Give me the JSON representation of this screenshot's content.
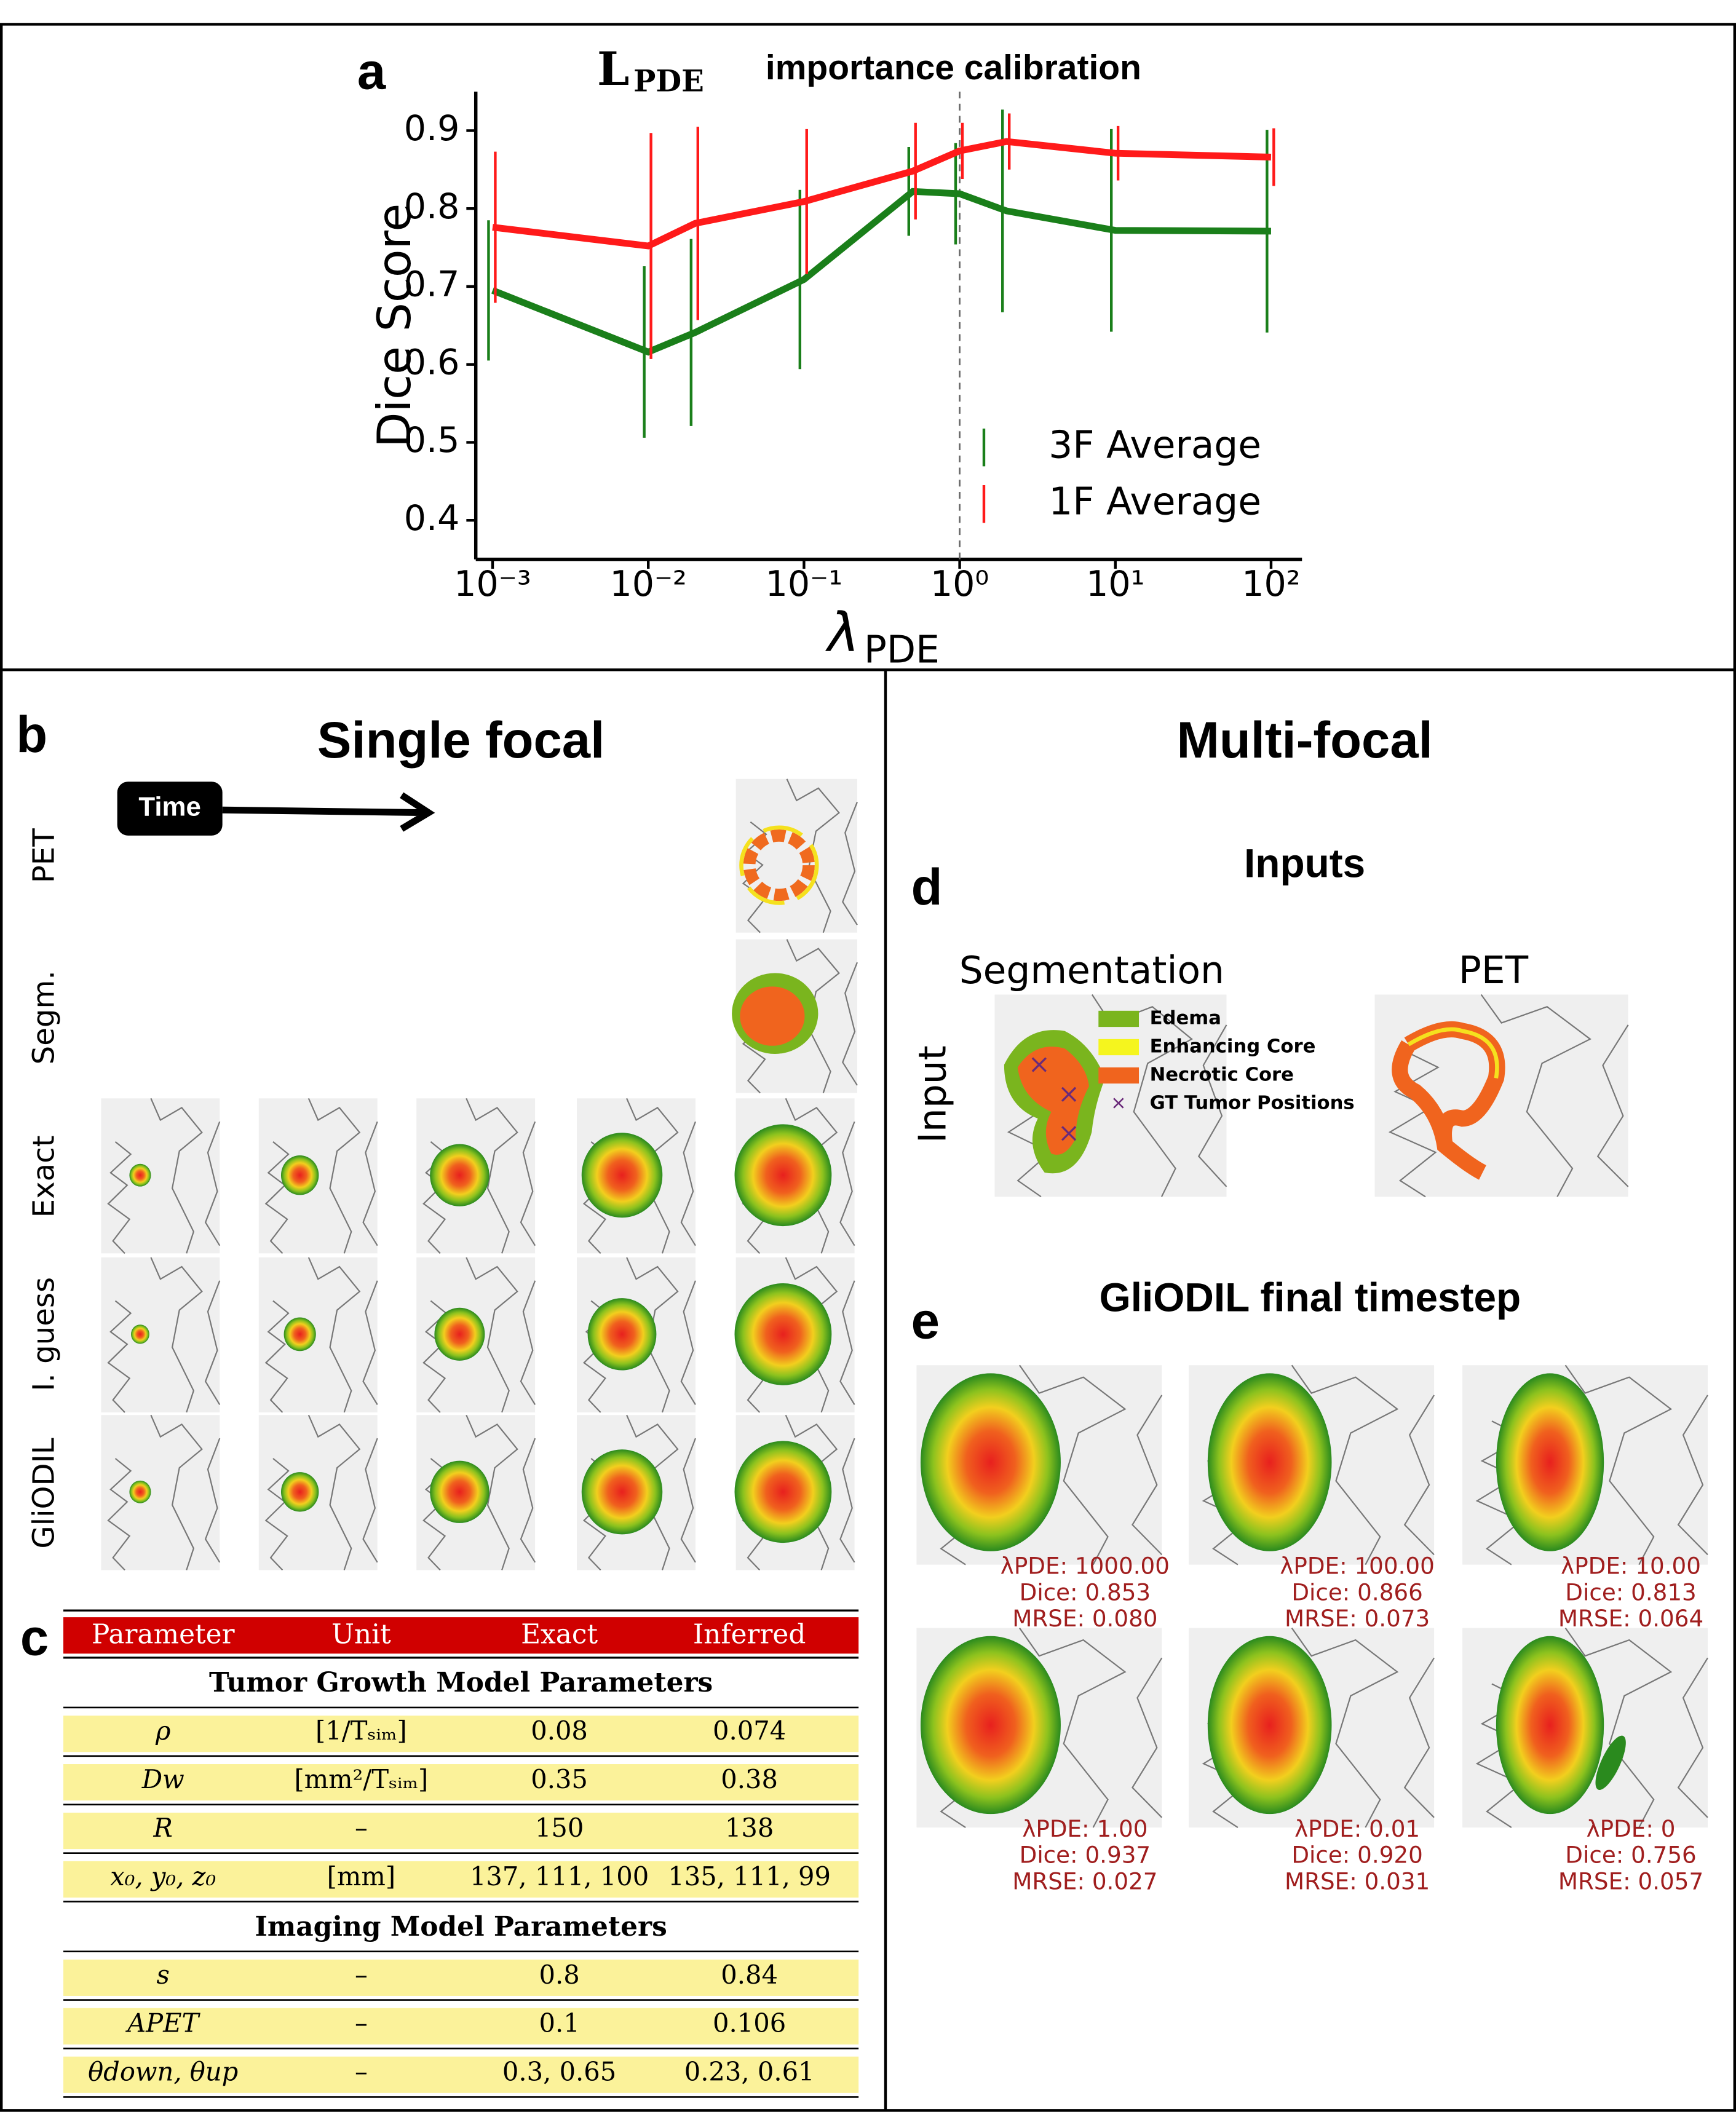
{
  "chart_data": {
    "type": "line",
    "title_symbol": "L",
    "title_subscript": "PDE",
    "title": "importance calibration",
    "x": [
      0.001,
      0.01,
      0.02,
      0.1,
      0.5,
      1,
      2,
      10,
      100
    ],
    "series": [
      {
        "name": "3F Average",
        "color": "#1a7f1a",
        "values": [
          0.695,
          0.616,
          0.641,
          0.709,
          0.822,
          0.819,
          0.797,
          0.772,
          0.771
        ],
        "errors": [
          0.09,
          0.11,
          0.12,
          0.115,
          0.057,
          0.065,
          0.13,
          0.13,
          0.13
        ]
      },
      {
        "name": "1F Average",
        "color": "#ff1a1a",
        "values": [
          0.776,
          0.752,
          0.781,
          0.809,
          0.848,
          0.874,
          0.886,
          0.871,
          0.866
        ],
        "errors": [
          0.097,
          0.145,
          0.124,
          0.093,
          0.062,
          0.036,
          0.036,
          0.035,
          0.037
        ]
      }
    ],
    "xlim": [
      0.00078,
      158
    ],
    "log_x": true,
    "xticks": [
      {
        "value": 0.001,
        "label": "10⁻³"
      },
      {
        "value": 0.01,
        "label": "10⁻²"
      },
      {
        "value": 0.1,
        "label": "10⁻¹"
      },
      {
        "value": 1,
        "label": "10⁰"
      },
      {
        "value": 10,
        "label": "10¹"
      },
      {
        "value": 100,
        "label": "10²"
      }
    ],
    "ylim": [
      0.35,
      0.95
    ],
    "yticks": [
      0.4,
      0.5,
      0.6,
      0.7,
      0.8,
      0.9
    ],
    "xlabel_symbol": "λ",
    "xlabel_subscript": "PDE",
    "ylabel": "Dice Score",
    "vline": 1,
    "legend": "lower right",
    "grid": false
  },
  "panel_labels": {
    "a": "a",
    "b": "b",
    "c": "c",
    "d": "d",
    "e": "e"
  },
  "panel_b": {
    "title": "Single focal",
    "time": "Time",
    "rows": [
      "PET",
      "Segm.",
      "Exact",
      "I. guess",
      "GliODIL"
    ]
  },
  "multi_focal_title": "Multi-focal",
  "table": {
    "header": [
      "Parameter",
      "Unit",
      "Exact",
      "Inferred"
    ],
    "sections": [
      {
        "title": "Tumor Growth Model Parameters",
        "rows": [
          [
            "ρ",
            "[1/Tₛᵢₘ]",
            "0.08",
            "0.074"
          ],
          [
            "Dw",
            "[mm²/Tₛᵢₘ]",
            "0.35",
            "0.38"
          ],
          [
            "R",
            "–",
            "150",
            "138"
          ],
          [
            "x₀, y₀, z₀",
            "[mm]",
            "137, 111, 100",
            "135, 111, 99"
          ]
        ]
      },
      {
        "title": "Imaging Model Parameters",
        "rows": [
          [
            "s",
            "–",
            "0.8",
            "0.84"
          ],
          [
            "APET",
            "–",
            "0.1",
            "0.106"
          ],
          [
            "θdown, θup",
            "–",
            "0.3, 0.65",
            "0.23, 0.61"
          ]
        ]
      }
    ]
  },
  "panel_d": {
    "title": "Inputs",
    "segmentation": "Segmentation",
    "pet": "PET",
    "row_label": "Input",
    "legend": [
      "Edema",
      "Enhancing Core",
      "Necrotic Core",
      "GT Tumor Positions"
    ]
  },
  "panel_e": {
    "title": "GliODIL final timestep",
    "captions": [
      [
        "λPDE: 1000.00",
        "Dice: 0.853",
        "MRSE: 0.080"
      ],
      [
        "λPDE: 100.00",
        "Dice: 0.866",
        "MRSE: 0.073"
      ],
      [
        "λPDE: 10.00",
        "Dice: 0.813",
        "MRSE: 0.064"
      ],
      [
        "λPDE: 1.00",
        "Dice: 0.937",
        "MRSE: 0.027"
      ],
      [
        "λPDE: 0.01",
        "Dice: 0.920",
        "MRSE: 0.031"
      ],
      [
        "λPDE: 0",
        "Dice: 0.756",
        "MRSE: 0.057"
      ]
    ]
  }
}
